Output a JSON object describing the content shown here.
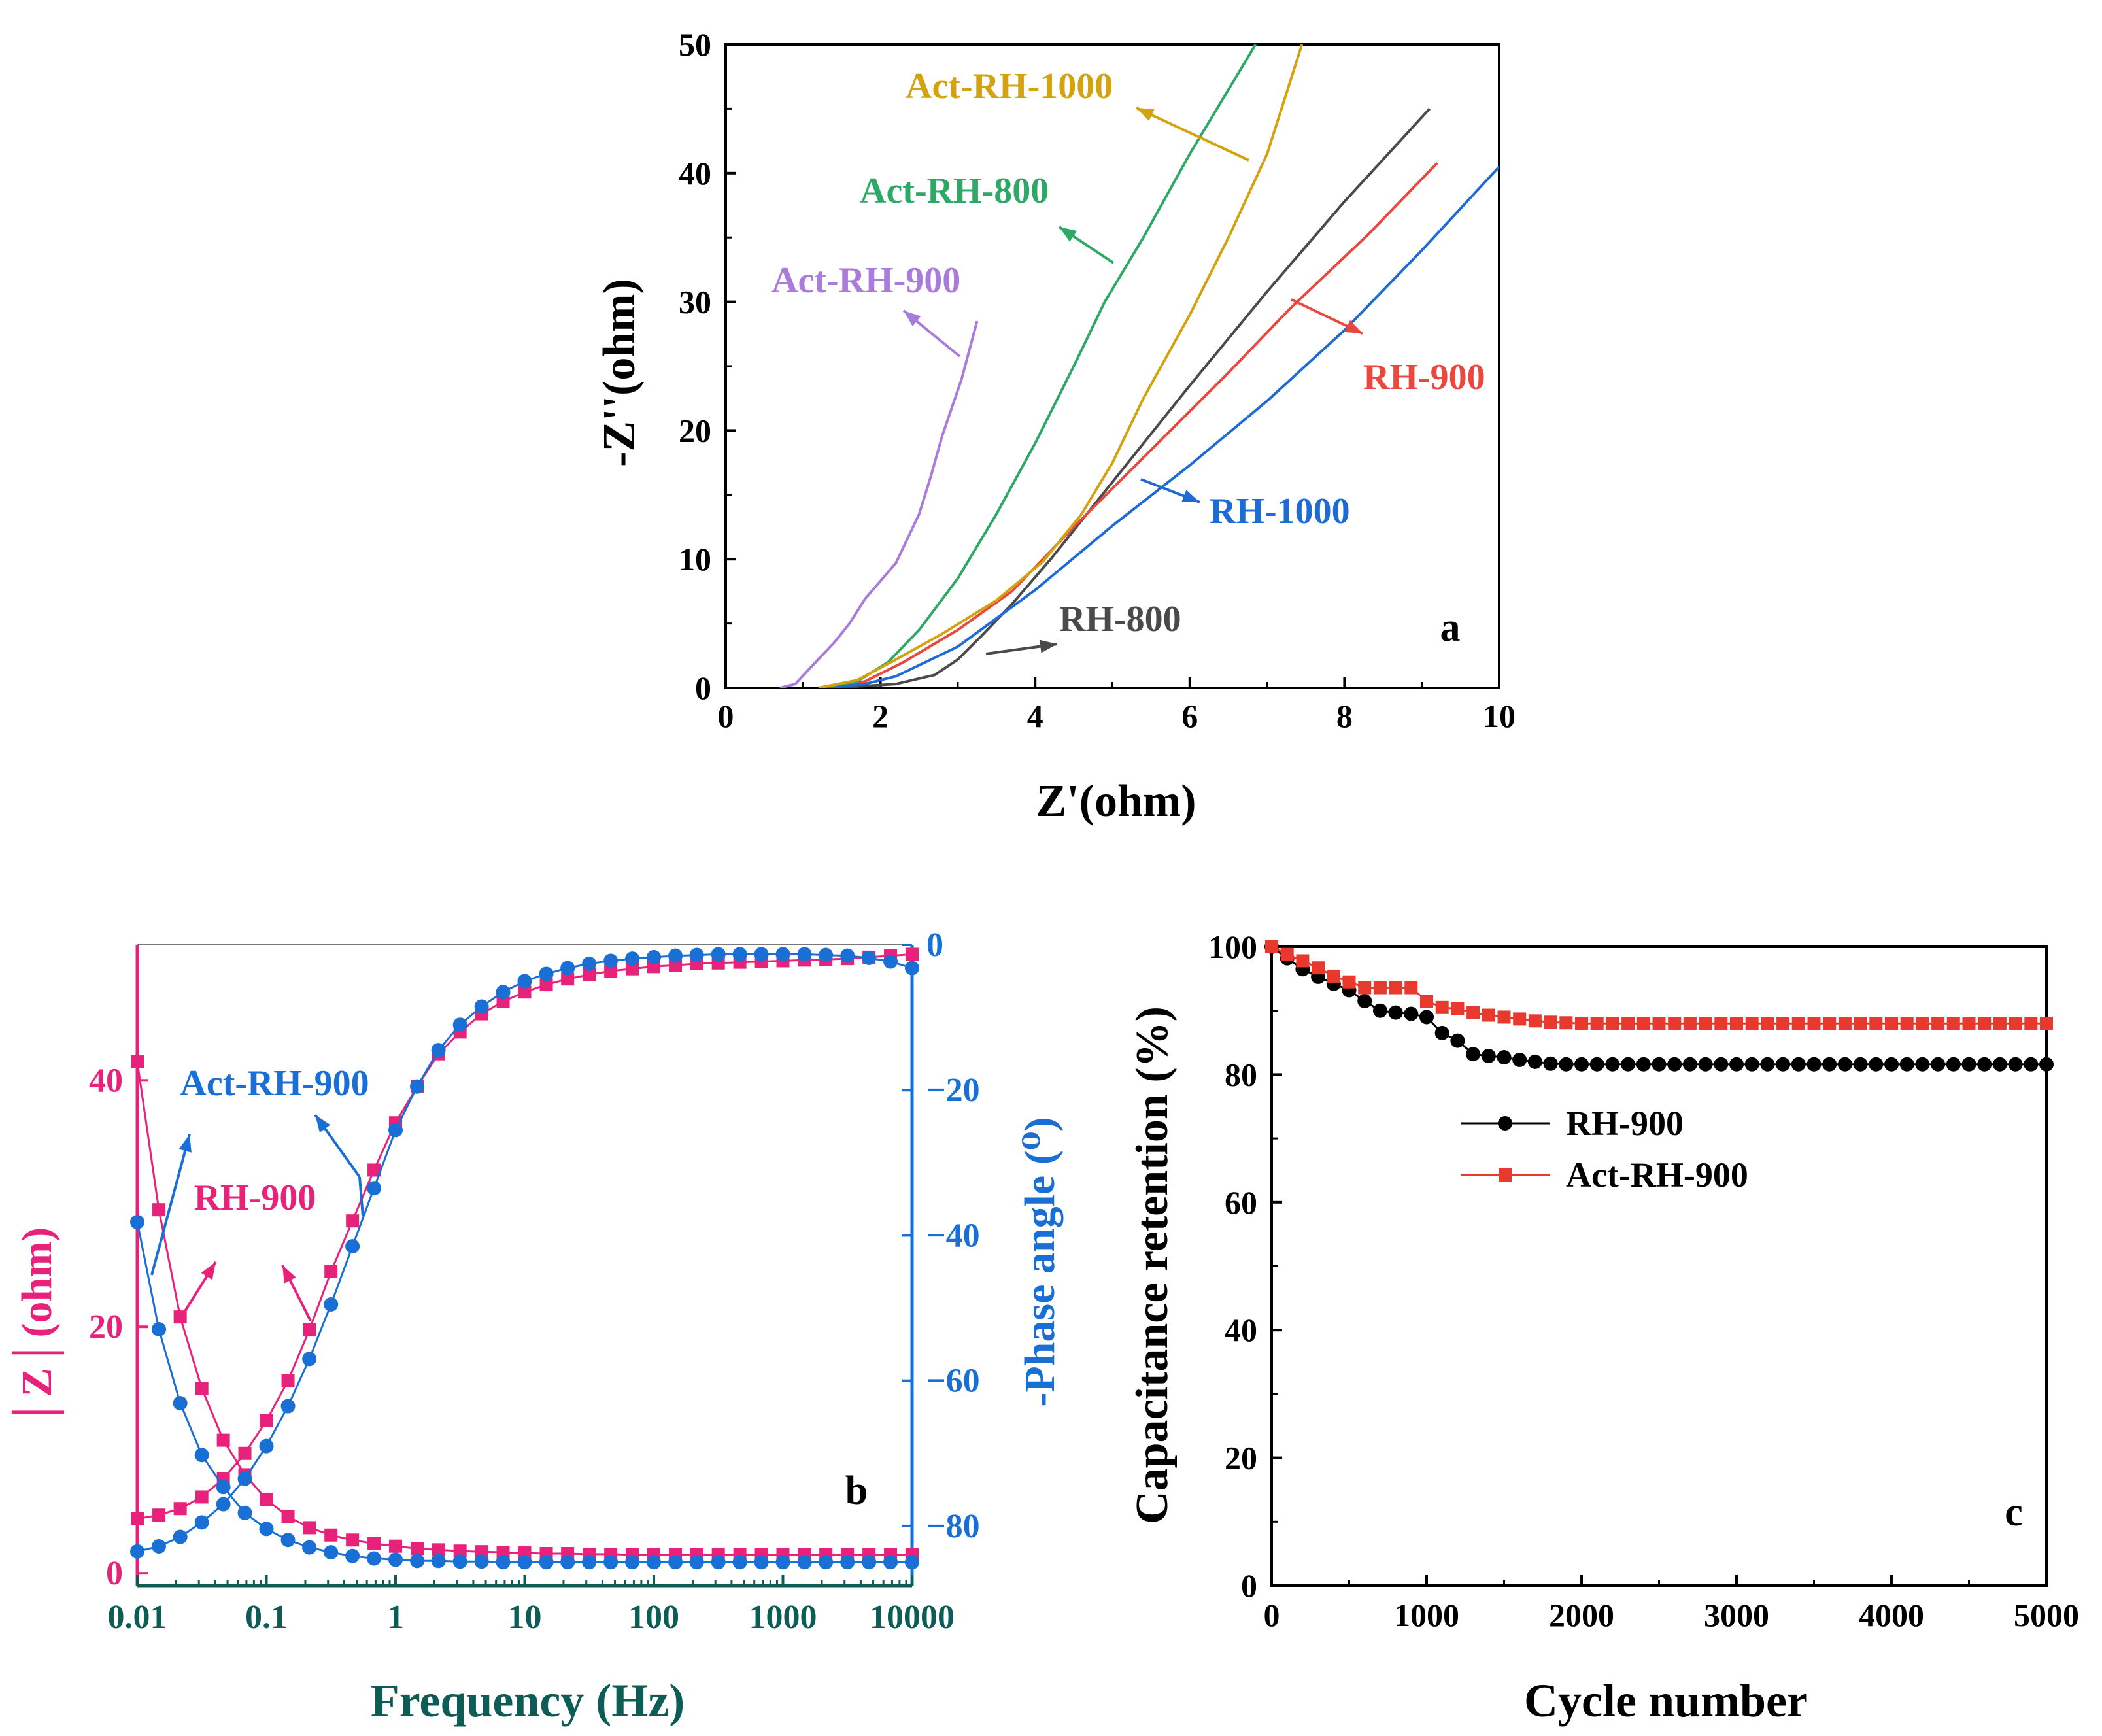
{
  "chart_data": [
    {
      "panel": "a",
      "type": "line",
      "panel_label": "a",
      "xlabel": "Z'(ohm)",
      "ylabel": "-Z''(ohm)",
      "xlim": [
        0,
        10
      ],
      "ylim": [
        0,
        50
      ],
      "xticks": [
        0,
        2,
        4,
        6,
        8,
        10
      ],
      "yticks": [
        0,
        10,
        20,
        30,
        40,
        50
      ],
      "series": [
        {
          "name": "RH-800",
          "color": "#4a4a4a",
          "points": [
            [
              1.4,
              0
            ],
            [
              2.2,
              0.3
            ],
            [
              2.7,
              1.0
            ],
            [
              3.0,
              2.2
            ],
            [
              3.3,
              4.0
            ],
            [
              3.7,
              6.5
            ],
            [
              4.2,
              10
            ],
            [
              5,
              16
            ],
            [
              6,
              23.5
            ],
            [
              7,
              30.8
            ],
            [
              8,
              37.8
            ],
            [
              9.1,
              45
            ]
          ]
        },
        {
          "name": "RH-900",
          "color": "#e8483e",
          "points": [
            [
              1.3,
              0
            ],
            [
              1.8,
              0.5
            ],
            [
              2.3,
              2.0
            ],
            [
              3,
              4.5
            ],
            [
              3.7,
              7.5
            ],
            [
              4.5,
              12.5
            ],
            [
              5.5,
              18.5
            ],
            [
              6.5,
              24.5
            ],
            [
              7.3,
              29.5
            ],
            [
              8.3,
              35.2
            ],
            [
              9.2,
              40.8
            ]
          ]
        },
        {
          "name": "RH-1000",
          "color": "#1f6bd6",
          "points": [
            [
              1.3,
              0
            ],
            [
              1.8,
              0.3
            ],
            [
              2.2,
              0.9
            ],
            [
              3,
              3.2
            ],
            [
              4,
              7.6
            ],
            [
              5,
              12.6
            ],
            [
              6,
              17.3
            ],
            [
              7,
              22.3
            ],
            [
              8,
              27.8
            ],
            [
              9,
              34
            ],
            [
              10,
              40.5
            ]
          ]
        },
        {
          "name": "Act-RH-800",
          "color": "#2ea866",
          "points": [
            [
              1.2,
              0
            ],
            [
              1.7,
              0.5
            ],
            [
              2.1,
              2.0
            ],
            [
              2.5,
              4.5
            ],
            [
              3,
              8.5
            ],
            [
              3.5,
              13.5
            ],
            [
              4,
              19
            ],
            [
              4.5,
              25
            ],
            [
              4.9,
              30
            ],
            [
              5.4,
              35
            ],
            [
              6,
              41.5
            ],
            [
              6.5,
              46.5
            ],
            [
              6.85,
              50
            ]
          ]
        },
        {
          "name": "Act-RH-1000",
          "color": "#d4a20e",
          "points": [
            [
              1.2,
              0
            ],
            [
              1.7,
              0.6
            ],
            [
              2.2,
              2.2
            ],
            [
              2.8,
              4.2
            ],
            [
              3.5,
              6.8
            ],
            [
              4.1,
              9.8
            ],
            [
              4.6,
              13.5
            ],
            [
              5,
              17.5
            ],
            [
              5.4,
              22.5
            ],
            [
              6,
              29
            ],
            [
              6.5,
              35
            ],
            [
              7,
              41.5
            ],
            [
              7.45,
              50
            ]
          ]
        },
        {
          "name": "Act-RH-900",
          "color": "#a97cdb",
          "points": [
            [
              0.7,
              0
            ],
            [
              0.9,
              0.3
            ],
            [
              1.1,
              1.6
            ],
            [
              1.4,
              3.5
            ],
            [
              1.6,
              5
            ],
            [
              1.8,
              6.9
            ],
            [
              2.2,
              9.7
            ],
            [
              2.5,
              13.5
            ],
            [
              2.65,
              16.4
            ],
            [
              2.8,
              19.6
            ],
            [
              3.05,
              24
            ],
            [
              3.25,
              28.5
            ]
          ]
        }
      ],
      "annotations": [
        {
          "text": "Act-RH-1000",
          "color": "#d4a20e"
        },
        {
          "text": "Act-RH-800",
          "color": "#2ea866"
        },
        {
          "text": "Act-RH-900",
          "color": "#a97cdb"
        },
        {
          "text": "RH-900",
          "color": "#e8483e"
        },
        {
          "text": "RH-1000",
          "color": "#1f6bd6"
        },
        {
          "text": "RH-800",
          "color": "#4a4a4a"
        }
      ]
    },
    {
      "panel": "b",
      "type": "scatter",
      "panel_label": "b",
      "xlabel": "Frequency (Hz)",
      "ylabel_left": "│Z│(ohm)",
      "ylabel_right": "-Phase angle (⁰)",
      "xscale": "log",
      "xlim": [
        0.01,
        10000
      ],
      "ylim_left": [
        -1,
        51
      ],
      "ylim_right": [
        -90,
        0
      ],
      "xticks": [
        "0.01",
        "0.1",
        "1",
        "10",
        "100",
        "1000",
        "10000"
      ],
      "xtick_values": [
        0.01,
        0.1,
        1,
        10,
        100,
        1000,
        10000
      ],
      "yticks_left": [
        0,
        20,
        40
      ],
      "yticks_right": [
        0,
        -20,
        -40,
        -60,
        -80
      ],
      "left_color": "#e8227a",
      "right_color": "#1a6fd4",
      "axis_color": "#0e5c56",
      "series": [
        {
          "name": "RH-900 |Z|",
          "axis": "left",
          "marker": "square",
          "color": "#e8227a",
          "x": [
            0.01,
            0.0147,
            0.0215,
            0.0316,
            0.0464,
            0.0681,
            0.1,
            0.147,
            0.215,
            0.316,
            0.464,
            0.681,
            1,
            1.47,
            2.15,
            3.16,
            4.64,
            6.81,
            10,
            14.7,
            21.5,
            31.6,
            46.4,
            68.1,
            100,
            147,
            215,
            316,
            464,
            681,
            1000,
            1470,
            2150,
            3160,
            4640,
            6810,
            10000
          ],
          "values": [
            41.5,
            29.5,
            20.8,
            15,
            10.8,
            8,
            6,
            4.6,
            3.7,
            3.1,
            2.7,
            2.4,
            2.2,
            2.0,
            1.9,
            1.8,
            1.75,
            1.7,
            1.65,
            1.6,
            1.6,
            1.55,
            1.55,
            1.5,
            1.5,
            1.5,
            1.5,
            1.5,
            1.5,
            1.5,
            1.5,
            1.5,
            1.5,
            1.5,
            1.5,
            1.5,
            1.5
          ]
        },
        {
          "name": "RH-900 phase",
          "axis": "right",
          "marker": "square",
          "color": "#e8227a",
          "x": [
            0.01,
            0.0147,
            0.0215,
            0.0316,
            0.0464,
            0.0681,
            0.1,
            0.147,
            0.215,
            0.316,
            0.464,
            0.681,
            1,
            1.47,
            2.15,
            3.16,
            4.64,
            6.81,
            10,
            14.7,
            21.5,
            31.6,
            46.4,
            68.1,
            100,
            147,
            215,
            316,
            464,
            681,
            1000,
            1470,
            2150,
            3160,
            4640,
            6810,
            10000
          ],
          "values": [
            -79,
            -78.5,
            -77.6,
            -76,
            -73.5,
            -70,
            -65.5,
            -60,
            -53,
            -45,
            -38,
            -31,
            -24.5,
            -19.5,
            -15,
            -12,
            -9.5,
            -7.8,
            -6.5,
            -5.5,
            -4.7,
            -4.1,
            -3.6,
            -3.3,
            -3,
            -2.8,
            -2.6,
            -2.5,
            -2.4,
            -2.3,
            -2.2,
            -2.1,
            -2.0,
            -1.9,
            -1.7,
            -1.5,
            -1.3
          ]
        },
        {
          "name": "Act-RH-900 |Z|",
          "axis": "left",
          "marker": "circle",
          "color": "#1a6fd4",
          "x": [
            0.01,
            0.0147,
            0.0215,
            0.0316,
            0.0464,
            0.0681,
            0.1,
            0.147,
            0.215,
            0.316,
            0.464,
            0.681,
            1,
            1.47,
            2.15,
            3.16,
            4.64,
            6.81,
            10,
            14.7,
            21.5,
            31.6,
            46.4,
            68.1,
            100,
            147,
            215,
            316,
            464,
            681,
            1000,
            1470,
            2150,
            3160,
            4640,
            6810,
            10000
          ],
          "values": [
            28.5,
            19.8,
            13.8,
            9.6,
            7,
            4.9,
            3.6,
            2.7,
            2.1,
            1.7,
            1.4,
            1.2,
            1.1,
            1.0,
            1.0,
            0.95,
            0.95,
            0.9,
            0.9,
            0.9,
            0.9,
            0.9,
            0.9,
            0.9,
            0.9,
            0.9,
            0.9,
            0.9,
            0.9,
            0.9,
            0.9,
            0.9,
            0.9,
            0.9,
            0.9,
            0.9,
            0.9
          ]
        },
        {
          "name": "Act-RH-900 phase",
          "axis": "right",
          "marker": "circle",
          "color": "#1a6fd4",
          "x": [
            0.01,
            0.0147,
            0.0215,
            0.0316,
            0.0464,
            0.0681,
            0.1,
            0.147,
            0.215,
            0.316,
            0.464,
            0.681,
            1,
            1.47,
            2.15,
            3.16,
            4.64,
            6.81,
            10,
            14.7,
            21.5,
            31.6,
            46.4,
            68.1,
            100,
            147,
            215,
            316,
            464,
            681,
            1000,
            1470,
            2150,
            3160,
            4640,
            6810,
            10000
          ],
          "values": [
            -83.5,
            -82.8,
            -81.5,
            -79.5,
            -77,
            -73.5,
            -69,
            -63.5,
            -57,
            -49.5,
            -41.5,
            -33.5,
            -25.5,
            -19.5,
            -14.5,
            -11,
            -8.5,
            -6.5,
            -5,
            -4,
            -3.2,
            -2.6,
            -2.2,
            -1.9,
            -1.7,
            -1.5,
            -1.4,
            -1.3,
            -1.3,
            -1.3,
            -1.3,
            -1.3,
            -1.4,
            -1.5,
            -1.8,
            -2.3,
            -3.2
          ]
        }
      ],
      "annotations": [
        {
          "text": "Act-RH-900",
          "color": "#1a6fd4"
        },
        {
          "text": "RH-900",
          "color": "#e8227a"
        }
      ]
    },
    {
      "panel": "c",
      "type": "scatter",
      "panel_label": "c",
      "xlabel": "Cycle number",
      "ylabel": "Capacitance retention (%)",
      "xlim": [
        0,
        5000
      ],
      "ylim": [
        0,
        100
      ],
      "xticks": [
        0,
        1000,
        2000,
        3000,
        4000,
        5000
      ],
      "yticks": [
        0,
        20,
        40,
        60,
        80,
        100
      ],
      "legend_position": "center-left",
      "series": [
        {
          "name": "RH-900",
          "marker": "circle",
          "color": "#000000",
          "x": [
            0,
            100,
            200,
            300,
            400,
            500,
            600,
            700,
            800,
            900,
            1000,
            1100,
            1200,
            1300,
            1400,
            1500,
            1600,
            1700,
            1800,
            1900,
            2000,
            2100,
            2200,
            2300,
            2400,
            2500,
            2600,
            2700,
            2800,
            2900,
            3000,
            3100,
            3200,
            3300,
            3400,
            3500,
            3600,
            3700,
            3800,
            3900,
            4000,
            4100,
            4200,
            4300,
            4400,
            4500,
            4600,
            4700,
            4800,
            4900,
            5000
          ],
          "values": [
            100,
            98.2,
            96.5,
            95.3,
            94.2,
            93.2,
            91.5,
            90,
            89.7,
            89.5,
            89,
            86.5,
            85.3,
            83.2,
            82.9,
            82.7,
            82.3,
            82,
            81.7,
            81.6,
            81.6,
            81.6,
            81.6,
            81.6,
            81.6,
            81.6,
            81.6,
            81.6,
            81.6,
            81.6,
            81.6,
            81.6,
            81.6,
            81.6,
            81.6,
            81.6,
            81.6,
            81.6,
            81.6,
            81.6,
            81.6,
            81.6,
            81.6,
            81.6,
            81.6,
            81.6,
            81.6,
            81.6,
            81.6,
            81.6,
            81.6
          ]
        },
        {
          "name": "Act-RH-900",
          "marker": "square",
          "color": "#e8392e",
          "x": [
            0,
            100,
            200,
            300,
            400,
            500,
            600,
            700,
            800,
            900,
            1000,
            1100,
            1200,
            1300,
            1400,
            1500,
            1600,
            1700,
            1800,
            1900,
            2000,
            2100,
            2200,
            2300,
            2400,
            2500,
            2600,
            2700,
            2800,
            2900,
            3000,
            3100,
            3200,
            3300,
            3400,
            3500,
            3600,
            3700,
            3800,
            3900,
            4000,
            4100,
            4200,
            4300,
            4400,
            4500,
            4600,
            4700,
            4800,
            4900,
            5000
          ],
          "values": [
            100,
            98.8,
            97.8,
            96.7,
            95.4,
            94.5,
            93.6,
            93.6,
            93.6,
            93.6,
            91.5,
            90.5,
            90.3,
            89.7,
            89.3,
            89,
            88.7,
            88.4,
            88.2,
            88.1,
            88,
            88,
            88,
            88,
            88,
            88,
            88,
            88,
            88,
            88,
            88,
            88,
            88,
            88,
            88,
            88,
            88,
            88,
            88,
            88,
            88,
            88,
            88,
            88,
            88,
            88,
            88,
            88,
            88,
            88,
            88
          ]
        }
      ]
    }
  ]
}
